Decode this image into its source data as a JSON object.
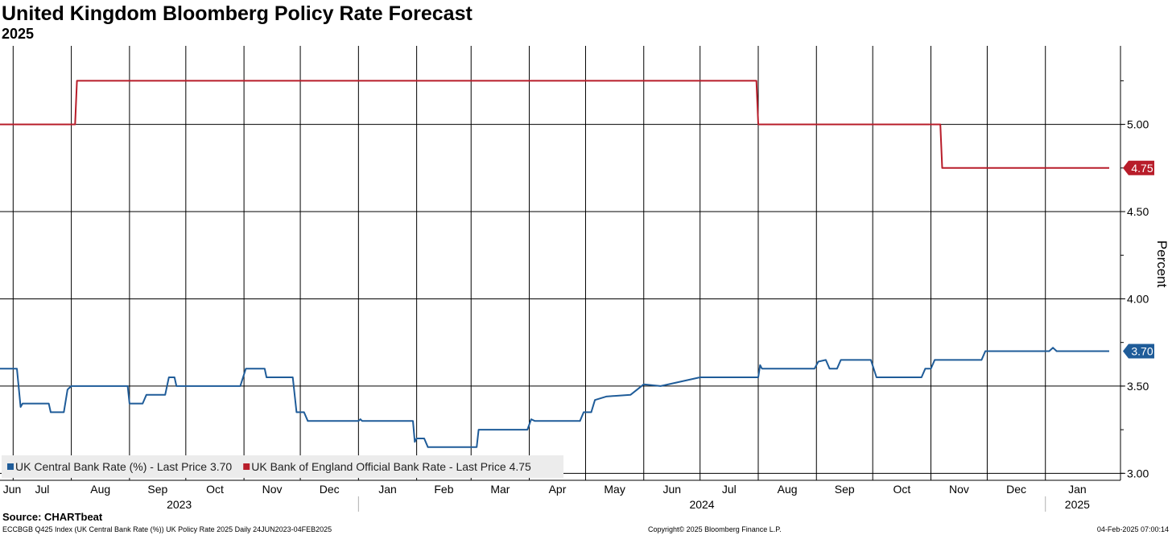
{
  "chart_data": {
    "type": "line",
    "title": "United Kingdom Bloomberg Policy Rate Forecast",
    "subtitle": "2025",
    "ylabel": "Percent",
    "ylim": [
      2.96,
      5.45
    ],
    "yticks": [
      3.0,
      3.5,
      4.0,
      4.5,
      5.0
    ],
    "ytick_labels": [
      "3.00",
      "3.50",
      "4.00",
      "4.50",
      "5.00"
    ],
    "x_range": [
      "2023-06-24",
      "2025-02-04"
    ],
    "months": [
      {
        "label": "Jun",
        "start": "2023-06-01"
      },
      {
        "label": "Jul",
        "start": "2023-07-01"
      },
      {
        "label": "Aug",
        "start": "2023-08-01"
      },
      {
        "label": "Sep",
        "start": "2023-09-01"
      },
      {
        "label": "Oct",
        "start": "2023-10-01"
      },
      {
        "label": "Nov",
        "start": "2023-11-01"
      },
      {
        "label": "Dec",
        "start": "2023-12-01"
      },
      {
        "label": "Jan",
        "start": "2024-01-01"
      },
      {
        "label": "Feb",
        "start": "2024-02-01"
      },
      {
        "label": "Mar",
        "start": "2024-03-01"
      },
      {
        "label": "Apr",
        "start": "2024-04-01"
      },
      {
        "label": "May",
        "start": "2024-05-01"
      },
      {
        "label": "Jun",
        "start": "2024-06-01"
      },
      {
        "label": "Jul",
        "start": "2024-07-01"
      },
      {
        "label": "Aug",
        "start": "2024-08-01"
      },
      {
        "label": "Sep",
        "start": "2024-09-01"
      },
      {
        "label": "Oct",
        "start": "2024-10-01"
      },
      {
        "label": "Nov",
        "start": "2024-11-01"
      },
      {
        "label": "Dec",
        "start": "2024-12-01"
      },
      {
        "label": "Jan",
        "start": "2025-01-01"
      }
    ],
    "years": [
      {
        "label": "2023",
        "start": "2023-06-24",
        "end": "2024-01-01"
      },
      {
        "label": "2024",
        "start": "2024-01-01",
        "end": "2025-01-01"
      },
      {
        "label": "2025",
        "start": "2025-01-01",
        "end": "2025-02-04"
      }
    ],
    "series": [
      {
        "name": "UK Central Bank Rate (%) - Last Price 3.70",
        "color": "#1f5c99",
        "last": "3.70",
        "points": [
          [
            "2023-06-24",
            3.6
          ],
          [
            "2023-07-03",
            3.6
          ],
          [
            "2023-07-05",
            3.38
          ],
          [
            "2023-07-06",
            3.4
          ],
          [
            "2023-07-20",
            3.4
          ],
          [
            "2023-07-21",
            3.35
          ],
          [
            "2023-07-28",
            3.35
          ],
          [
            "2023-07-30",
            3.48
          ],
          [
            "2023-08-01",
            3.5
          ],
          [
            "2023-08-31",
            3.5
          ],
          [
            "2023-09-01",
            3.4
          ],
          [
            "2023-09-08",
            3.4
          ],
          [
            "2023-09-10",
            3.45
          ],
          [
            "2023-09-20",
            3.45
          ],
          [
            "2023-09-22",
            3.55
          ],
          [
            "2023-09-25",
            3.55
          ],
          [
            "2023-09-26",
            3.5
          ],
          [
            "2023-10-30",
            3.5
          ],
          [
            "2023-11-02",
            3.6
          ],
          [
            "2023-11-12",
            3.6
          ],
          [
            "2023-11-13",
            3.55
          ],
          [
            "2023-11-27",
            3.55
          ],
          [
            "2023-11-29",
            3.35
          ],
          [
            "2023-12-03",
            3.35
          ],
          [
            "2023-12-05",
            3.3
          ],
          [
            "2024-01-01",
            3.3
          ],
          [
            "2024-01-02",
            3.31
          ],
          [
            "2024-01-03",
            3.3
          ],
          [
            "2024-01-30",
            3.3
          ],
          [
            "2024-01-31",
            3.18
          ],
          [
            "2024-02-01",
            3.2
          ],
          [
            "2024-02-05",
            3.2
          ],
          [
            "2024-02-07",
            3.15
          ],
          [
            "2024-03-04",
            3.15
          ],
          [
            "2024-03-05",
            3.25
          ],
          [
            "2024-03-31",
            3.25
          ],
          [
            "2024-04-02",
            3.31
          ],
          [
            "2024-04-04",
            3.3
          ],
          [
            "2024-04-28",
            3.3
          ],
          [
            "2024-04-30",
            3.35
          ],
          [
            "2024-05-04",
            3.35
          ],
          [
            "2024-05-06",
            3.42
          ],
          [
            "2024-05-12",
            3.44
          ],
          [
            "2024-05-25",
            3.45
          ],
          [
            "2024-06-01",
            3.51
          ],
          [
            "2024-06-10",
            3.5
          ],
          [
            "2024-07-01",
            3.55
          ],
          [
            "2024-07-28",
            3.55
          ],
          [
            "2024-08-01",
            3.55
          ],
          [
            "2024-08-02",
            3.62
          ],
          [
            "2024-08-03",
            3.6
          ],
          [
            "2024-08-31",
            3.6
          ],
          [
            "2024-09-02",
            3.64
          ],
          [
            "2024-09-06",
            3.65
          ],
          [
            "2024-09-08",
            3.6
          ],
          [
            "2024-09-12",
            3.6
          ],
          [
            "2024-09-14",
            3.65
          ],
          [
            "2024-09-30",
            3.65
          ],
          [
            "2024-10-03",
            3.55
          ],
          [
            "2024-10-27",
            3.55
          ],
          [
            "2024-10-29",
            3.6
          ],
          [
            "2024-11-01",
            3.6
          ],
          [
            "2024-11-03",
            3.65
          ],
          [
            "2024-11-28",
            3.65
          ],
          [
            "2024-11-30",
            3.7
          ],
          [
            "2025-01-03",
            3.7
          ],
          [
            "2025-01-05",
            3.72
          ],
          [
            "2025-01-07",
            3.7
          ],
          [
            "2025-02-04",
            3.7
          ]
        ]
      },
      {
        "name": "UK Bank of England Official Bank Rate - Last Price 4.75",
        "color": "#b81d2a",
        "last": "4.75",
        "points": [
          [
            "2023-06-24",
            5.0
          ],
          [
            "2023-08-03",
            5.0
          ],
          [
            "2023-08-04",
            5.25
          ],
          [
            "2024-07-31",
            5.25
          ],
          [
            "2024-08-01",
            5.0
          ],
          [
            "2024-11-06",
            5.0
          ],
          [
            "2024-11-07",
            4.75
          ],
          [
            "2025-02-04",
            4.75
          ]
        ]
      }
    ],
    "legend": [
      {
        "label": "UK Central Bank Rate (%) - Last Price 3.70",
        "color": "#1f5c99"
      },
      {
        "label": "UK Bank of England Official Bank Rate - Last Price 4.75",
        "color": "#b81d2a"
      }
    ]
  },
  "footer": {
    "source": "Source: CHARTbeat",
    "left": "ECCBGB Q425 Index (UK Central Bank Rate (%)) UK Policy Rate 2025  Daily 24JUN2023-04FEB2025",
    "center": "Copyright© 2025 Bloomberg Finance L.P.",
    "right": "04-Feb-2025 07:00:14"
  }
}
